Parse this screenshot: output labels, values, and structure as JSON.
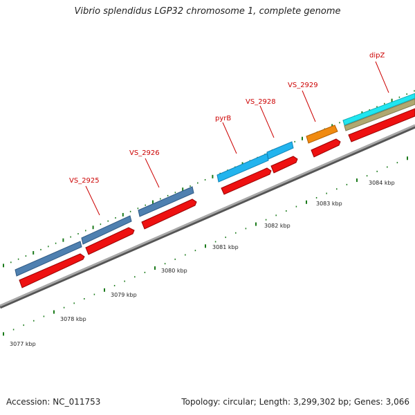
{
  "title": "Vibrio splendidus LGP32 chromosome 1, complete genome",
  "footer": {
    "accession": "Accession: NC_011753",
    "topology": "Topology: circular; Length: 3,299,302 bp; Genes: 3,066"
  },
  "colors": {
    "backbone": "#8a8a8a",
    "cds_strand": "#ee1111",
    "steelblue_gene": "#4f80b0",
    "skyblue_gene": "#22b4ee",
    "orange_gene": "#f08a10",
    "cyan_gene": "#20e6f0",
    "khaki_gene": "#b0a870",
    "label": "#cc0000",
    "tick": "#1a7a1a"
  },
  "gene_labels": [
    "VS_2925",
    "VS_2926",
    "pyrB",
    "VS_2928",
    "VS_2929",
    "dipZ"
  ],
  "axis_labels": [
    "3077 kbp",
    "3078 kbp",
    "3079 kbp",
    "3080 kbp",
    "3081 kbp",
    "3082 kbp",
    "3083 kbp",
    "3084 kbp"
  ]
}
